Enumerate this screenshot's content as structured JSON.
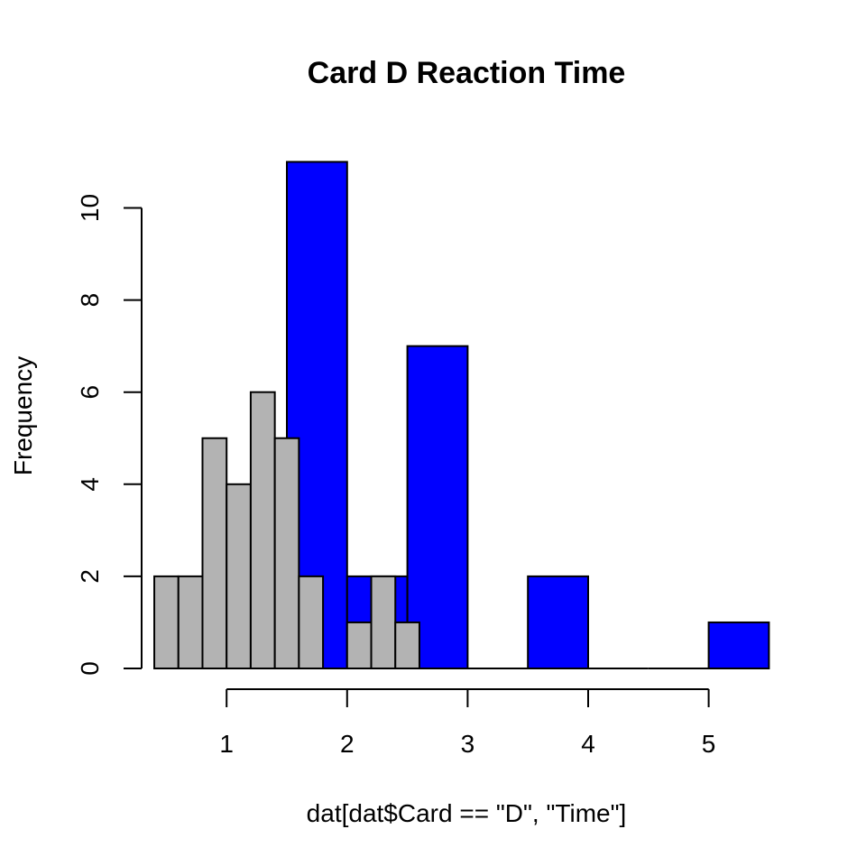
{
  "chart_data": {
    "type": "bar",
    "title": "Card D Reaction Time",
    "xlabel": "dat[dat$Card == \"D\", \"Time\"]",
    "ylabel": "Frequency",
    "xlim": [
      0.4,
      5.5
    ],
    "ylim": [
      0,
      11
    ],
    "x_ticks": [
      1,
      2,
      3,
      4,
      5
    ],
    "y_ticks": [
      0,
      2,
      4,
      6,
      8,
      10
    ],
    "grid": false,
    "legend": "none",
    "series": [
      {
        "color": "#0000ff",
        "bins": [
          {
            "x0": 1.5,
            "x1": 2.0,
            "count": 11
          },
          {
            "x0": 2.0,
            "x1": 2.5,
            "count": 2
          },
          {
            "x0": 2.5,
            "x1": 3.0,
            "count": 7
          },
          {
            "x0": 3.0,
            "x1": 3.5,
            "count": 0
          },
          {
            "x0": 3.5,
            "x1": 4.0,
            "count": 2
          },
          {
            "x0": 4.0,
            "x1": 4.5,
            "count": 0
          },
          {
            "x0": 4.5,
            "x1": 5.0,
            "count": 0
          },
          {
            "x0": 5.0,
            "x1": 5.5,
            "count": 1
          }
        ]
      },
      {
        "color": "#b3b3b3",
        "bins": [
          {
            "x0": 0.4,
            "x1": 0.6,
            "count": 2
          },
          {
            "x0": 0.6,
            "x1": 0.8,
            "count": 2
          },
          {
            "x0": 0.8,
            "x1": 1.0,
            "count": 5
          },
          {
            "x0": 1.0,
            "x1": 1.2,
            "count": 4
          },
          {
            "x0": 1.2,
            "x1": 1.4,
            "count": 6
          },
          {
            "x0": 1.4,
            "x1": 1.6,
            "count": 5
          },
          {
            "x0": 1.6,
            "x1": 1.8,
            "count": 2
          },
          {
            "x0": 1.8,
            "x1": 2.0,
            "count": 0
          },
          {
            "x0": 2.0,
            "x1": 2.2,
            "count": 1
          },
          {
            "x0": 2.2,
            "x1": 2.4,
            "count": 2
          },
          {
            "x0": 2.4,
            "x1": 2.6,
            "count": 1
          }
        ]
      }
    ]
  }
}
